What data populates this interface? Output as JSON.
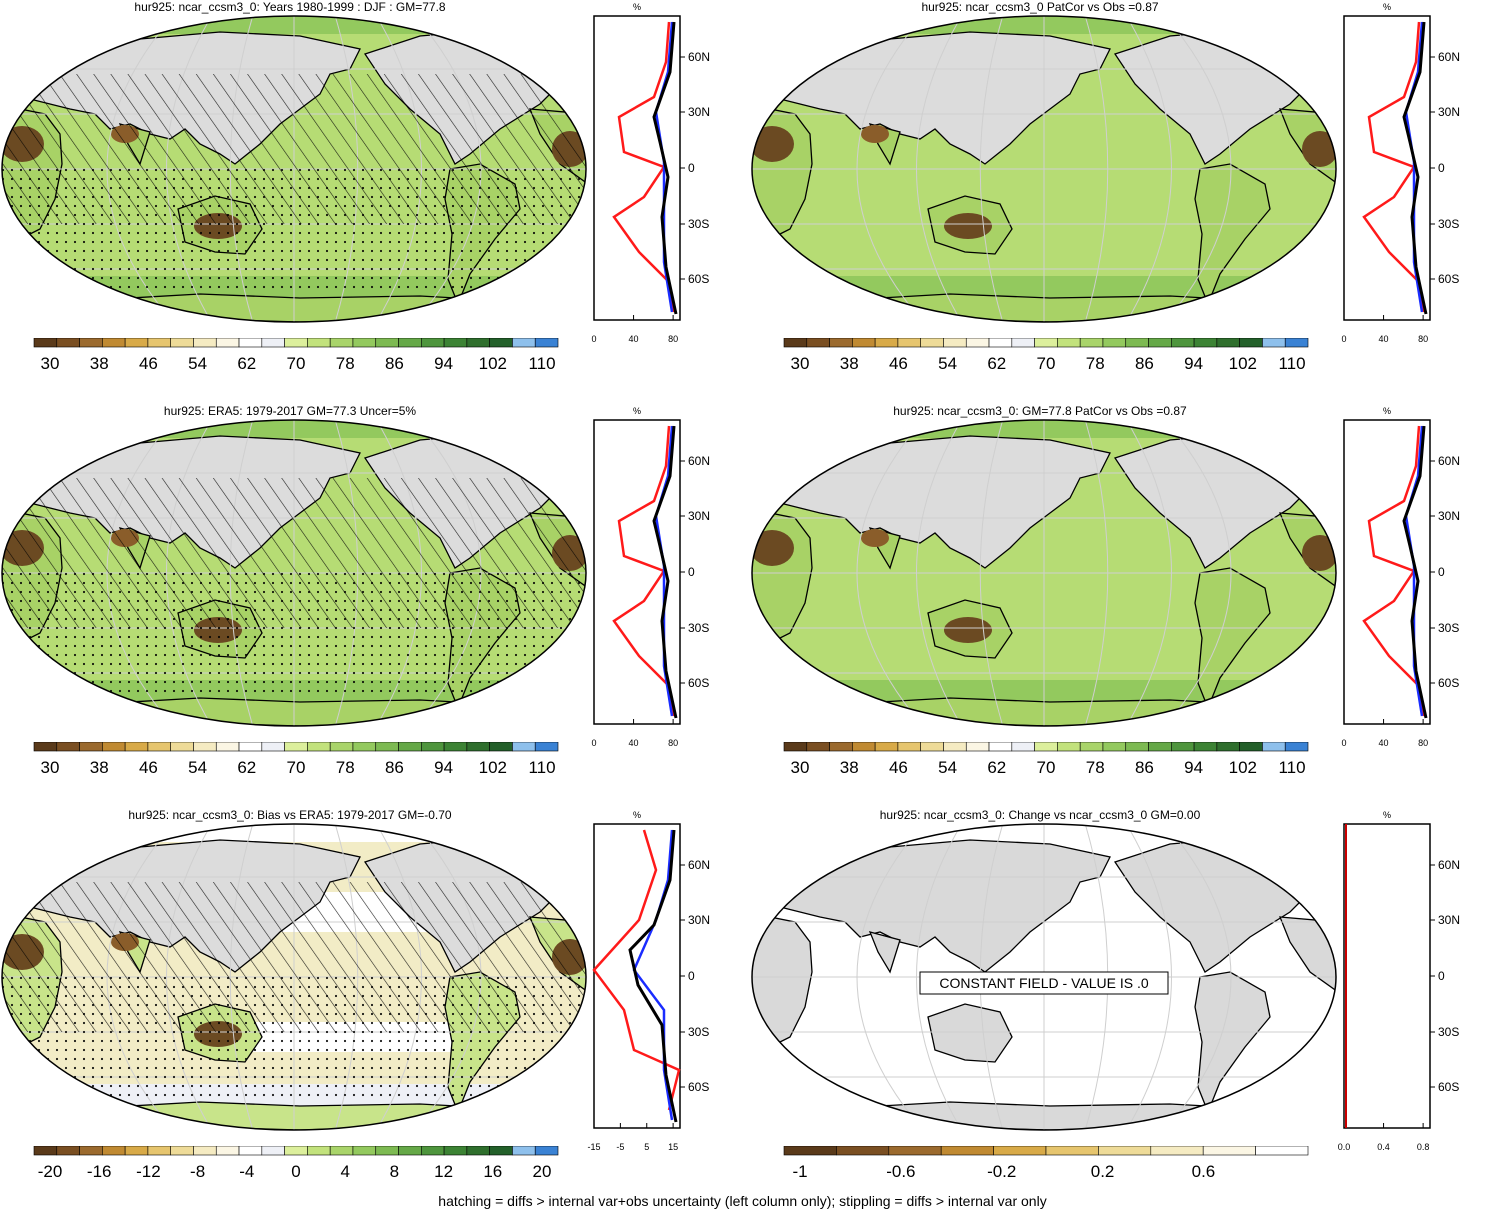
{
  "panels": [
    {
      "id": "p1",
      "title": "hur925: ncar_ccsm3_0: Years 1980-1999 : DJF : GM=77.8",
      "variant": "model",
      "hatch": true,
      "stipple": true,
      "cbar": "rh",
      "xticks": [
        "0",
        "40",
        "80"
      ]
    },
    {
      "id": "p2",
      "title": "hur925: ncar_ccsm3_0 PatCor vs Obs =0.87",
      "variant": "model",
      "hatch": false,
      "stipple": false,
      "cbar": "rh",
      "xticks": [
        "0",
        "40",
        "80"
      ]
    },
    {
      "id": "p3",
      "title": "hur925: ERA5: 1979-2017 GM=77.3 Uncer=5%",
      "variant": "obs",
      "hatch": true,
      "stipple": true,
      "cbar": "rh",
      "xticks": [
        "0",
        "40",
        "80"
      ]
    },
    {
      "id": "p4",
      "title": "hur925: ncar_ccsm3_0: GM=77.8 PatCor vs Obs =0.87",
      "variant": "model",
      "hatch": false,
      "stipple": false,
      "cbar": "rh",
      "xticks": [
        "0",
        "40",
        "80"
      ]
    },
    {
      "id": "p5",
      "title": "hur925: ncar_ccsm3_0: Bias vs ERA5: 1979-2017 GM=-0.70",
      "variant": "bias",
      "hatch": true,
      "stipple": true,
      "cbar": "bias",
      "xticks": [
        "-15",
        "-5",
        "5",
        "15"
      ]
    },
    {
      "id": "p6",
      "title": "hur925: ncar_ccsm3_0: Change vs ncar_ccsm3_0 GM=0.00",
      "variant": "change",
      "hatch": false,
      "stipple": false,
      "cbar": "change",
      "xticks": [
        "0.0",
        "0.4",
        "0.8"
      ],
      "message": "CONSTANT FIELD - VALUE IS .0"
    }
  ],
  "profile": {
    "unit_label": "%",
    "lat_labels": [
      "60N",
      "30N",
      "0",
      "30S",
      "60S"
    ]
  },
  "colorbars": {
    "rh": {
      "labels": [
        "30",
        "38",
        "46",
        "54",
        "62",
        "70",
        "78",
        "86",
        "94",
        "102",
        "110"
      ],
      "colors": [
        "#5a3a1a",
        "#7a4f22",
        "#9b6a2e",
        "#c08a32",
        "#d8aa48",
        "#e6c56e",
        "#eedb98",
        "#f5ebc2",
        "#fbf6e4",
        "#ffffff",
        "#eef0f6",
        "#dcef9c",
        "#c2e27c",
        "#a9d46a",
        "#93c95e",
        "#7dba52",
        "#65a847",
        "#4e953d",
        "#3c8334",
        "#2f6f2d",
        "#23602a",
        "#8ec0ec",
        "#3a82d4"
      ]
    },
    "bias": {
      "labels": [
        "-20",
        "-16",
        "-12",
        "-8",
        "-4",
        "0",
        "4",
        "8",
        "12",
        "16",
        "20"
      ],
      "colors": [
        "#5a3a1a",
        "#7a4f22",
        "#9b6a2e",
        "#c08a32",
        "#d8aa48",
        "#e6c56e",
        "#eedb98",
        "#f5ebc2",
        "#fbf6e4",
        "#ffffff",
        "#eef0f6",
        "#dcef9c",
        "#c2e27c",
        "#a9d46a",
        "#93c95e",
        "#7dba52",
        "#65a847",
        "#4e953d",
        "#3c8334",
        "#2f6f2d",
        "#23602a",
        "#8ec0ec",
        "#3a82d4"
      ]
    },
    "change": {
      "labels": [
        "-1",
        "-0.6",
        "-0.2",
        "0.2",
        "0.6"
      ],
      "colors": [
        "#5a3a1a",
        "#7a4f22",
        "#9b6a2e",
        "#c08a32",
        "#d8aa48",
        "#e6c56e",
        "#eedb98",
        "#f5ebc2",
        "#fbf6e4",
        "#ffffff"
      ]
    }
  },
  "footnote": "hatching = diffs > internal var+obs uncertainty (left column only); stippling = diffs > internal var only"
}
